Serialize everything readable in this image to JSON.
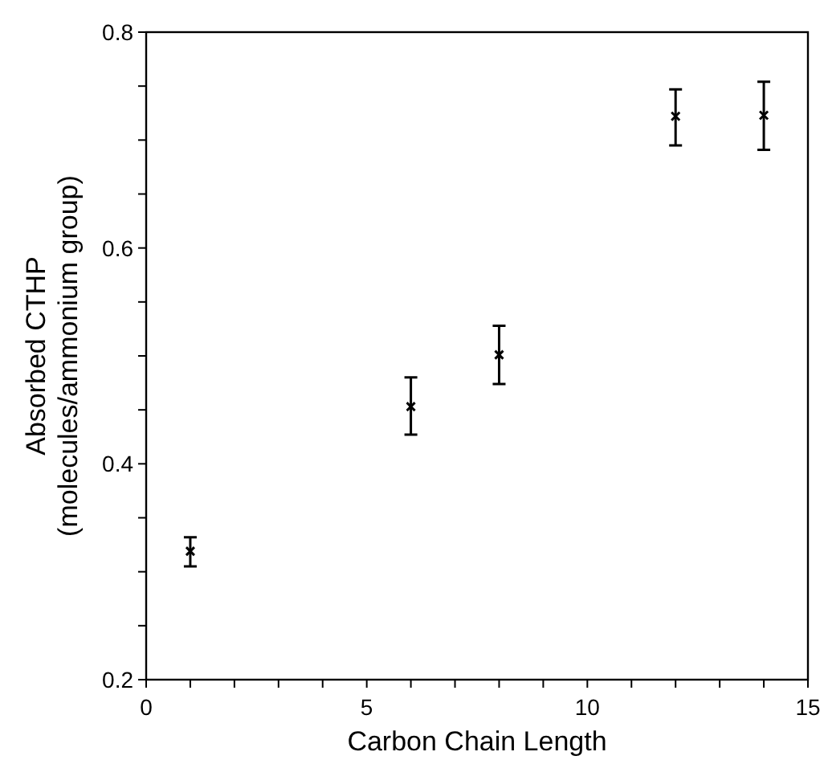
{
  "chart_data": {
    "type": "scatter",
    "xlabel": "Carbon Chain Length",
    "ylabel": "Absorbed CTHP\n(molecules/ammonium  group)",
    "x": [
      1,
      6,
      8,
      12,
      14
    ],
    "series": [
      {
        "color": "#000000",
        "values": [
          0.319,
          0.453,
          0.501,
          0.722,
          0.723
        ],
        "errors": [
          [
            0.305,
            0.332
          ],
          [
            0.427,
            0.48
          ],
          [
            0.474,
            0.528
          ],
          [
            0.695,
            0.747
          ],
          [
            0.691,
            0.754
          ]
        ]
      }
    ],
    "xlim": [
      0,
      15
    ],
    "ylim": [
      0.2,
      0.8
    ],
    "xticks": [
      0,
      {
        "value": 1,
        "label": null
      },
      {
        "value": 2,
        "label": null
      },
      {
        "value": 3,
        "label": null
      },
      {
        "value": 4,
        "label": null
      },
      5,
      {
        "value": 6,
        "label": null
      },
      {
        "value": 7,
        "label": null
      },
      {
        "value": 8,
        "label": null
      },
      {
        "value": 9,
        "label": null
      },
      10,
      {
        "value": 11,
        "label": null
      },
      {
        "value": 12,
        "label": null
      },
      {
        "value": 13,
        "label": null
      },
      {
        "value": 14,
        "label": null
      },
      15
    ],
    "yticks": [
      {
        "value": 0.2,
        "label": "0.2"
      },
      {
        "value": 0.25,
        "label": null
      },
      {
        "value": 0.3,
        "label": null
      },
      {
        "value": 0.35,
        "label": null
      },
      {
        "value": 0.4,
        "label": "0.4"
      },
      {
        "value": 0.45,
        "label": null
      },
      {
        "value": 0.5,
        "label": null
      },
      {
        "value": 0.55,
        "label": null
      },
      {
        "value": 0.6,
        "label": "0.6"
      },
      {
        "value": 0.65,
        "label": null
      },
      {
        "value": 0.7,
        "label": null
      },
      {
        "value": 0.75,
        "label": null
      },
      {
        "value": 0.8,
        "label": "0.8"
      }
    ],
    "marker": "cross"
  }
}
